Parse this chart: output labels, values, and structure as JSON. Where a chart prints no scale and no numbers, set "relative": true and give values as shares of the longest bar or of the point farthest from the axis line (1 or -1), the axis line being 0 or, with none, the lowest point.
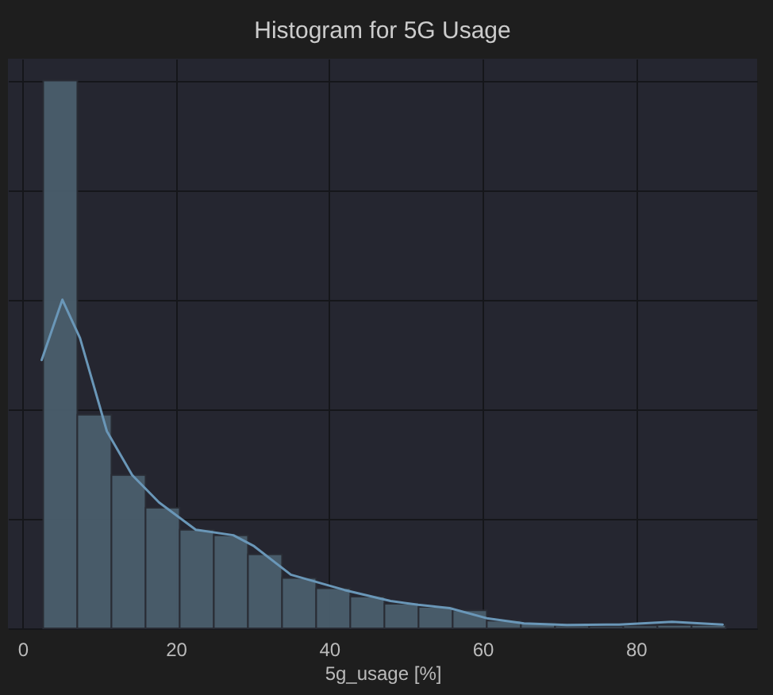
{
  "chart_data": {
    "type": "histogram",
    "title": "Histogram for 5G Usage",
    "xlabel": "5g_usage [%]",
    "relative": true,
    "bins": [
      2.7,
      7.15,
      11.6,
      16.05,
      20.5,
      24.95,
      29.4,
      33.85,
      38.3,
      42.75,
      47.2,
      51.65,
      56.1,
      60.55,
      65.0,
      69.45,
      73.9,
      78.35,
      82.8,
      87.25,
      91.7
    ],
    "values": [
      1,
      0.39,
      0.28,
      0.22,
      0.18,
      0.17,
      0.135,
      0.092,
      0.073,
      0.058,
      0.045,
      0.039,
      0.033,
      0.014,
      0.009,
      0.005,
      0.004,
      0.005,
      0.006,
      0.006
    ],
    "color": "#4a5e6d",
    "series": [
      {
        "type": "line",
        "color": "#6a97b8",
        "x": [
          2.5,
          5.2,
          7.5,
          11.0,
          14.3,
          17.8,
          22.6,
          27.5,
          30.2,
          35.0,
          42.0,
          48.0,
          51.6,
          55.7,
          60.7,
          65.4,
          71.0,
          77.8,
          84.7,
          91.3
        ],
        "values": [
          0.49,
          0.6,
          0.53,
          0.36,
          0.28,
          0.23,
          0.18,
          0.17,
          0.15,
          0.098,
          0.07,
          0.05,
          0.043,
          0.037,
          0.018,
          0.009,
          0.006,
          0.007,
          0.012,
          0.007
        ]
      }
    ],
    "xlim": [
      -1.9,
      95.8
    ],
    "xticks": [
      0,
      20,
      40,
      60,
      80
    ],
    "grid": true
  }
}
